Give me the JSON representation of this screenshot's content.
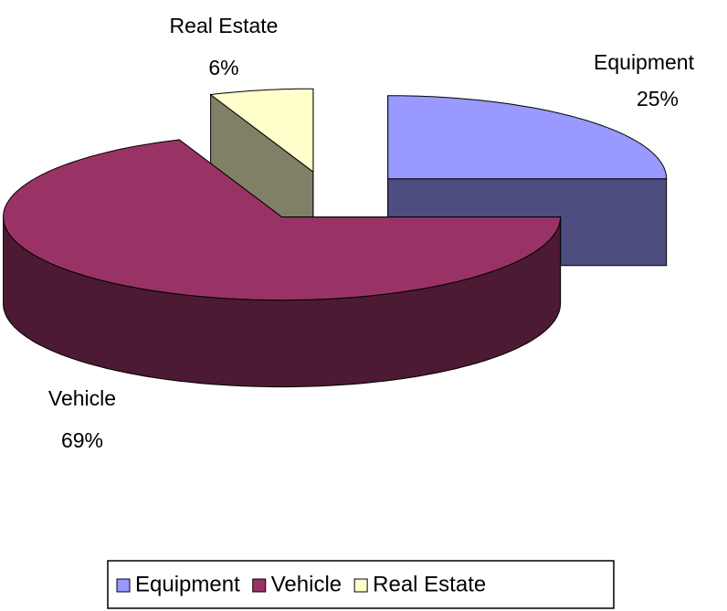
{
  "chart_data": {
    "type": "pie",
    "categories": [
      "Equipment",
      "Vehicle",
      "Real Estate"
    ],
    "values": [
      25,
      69,
      6
    ],
    "value_labels": [
      "25%",
      "69%",
      "6%"
    ],
    "colors": [
      "#9999ff",
      "#993366",
      "#ffffcc"
    ],
    "legend": "bottom"
  }
}
